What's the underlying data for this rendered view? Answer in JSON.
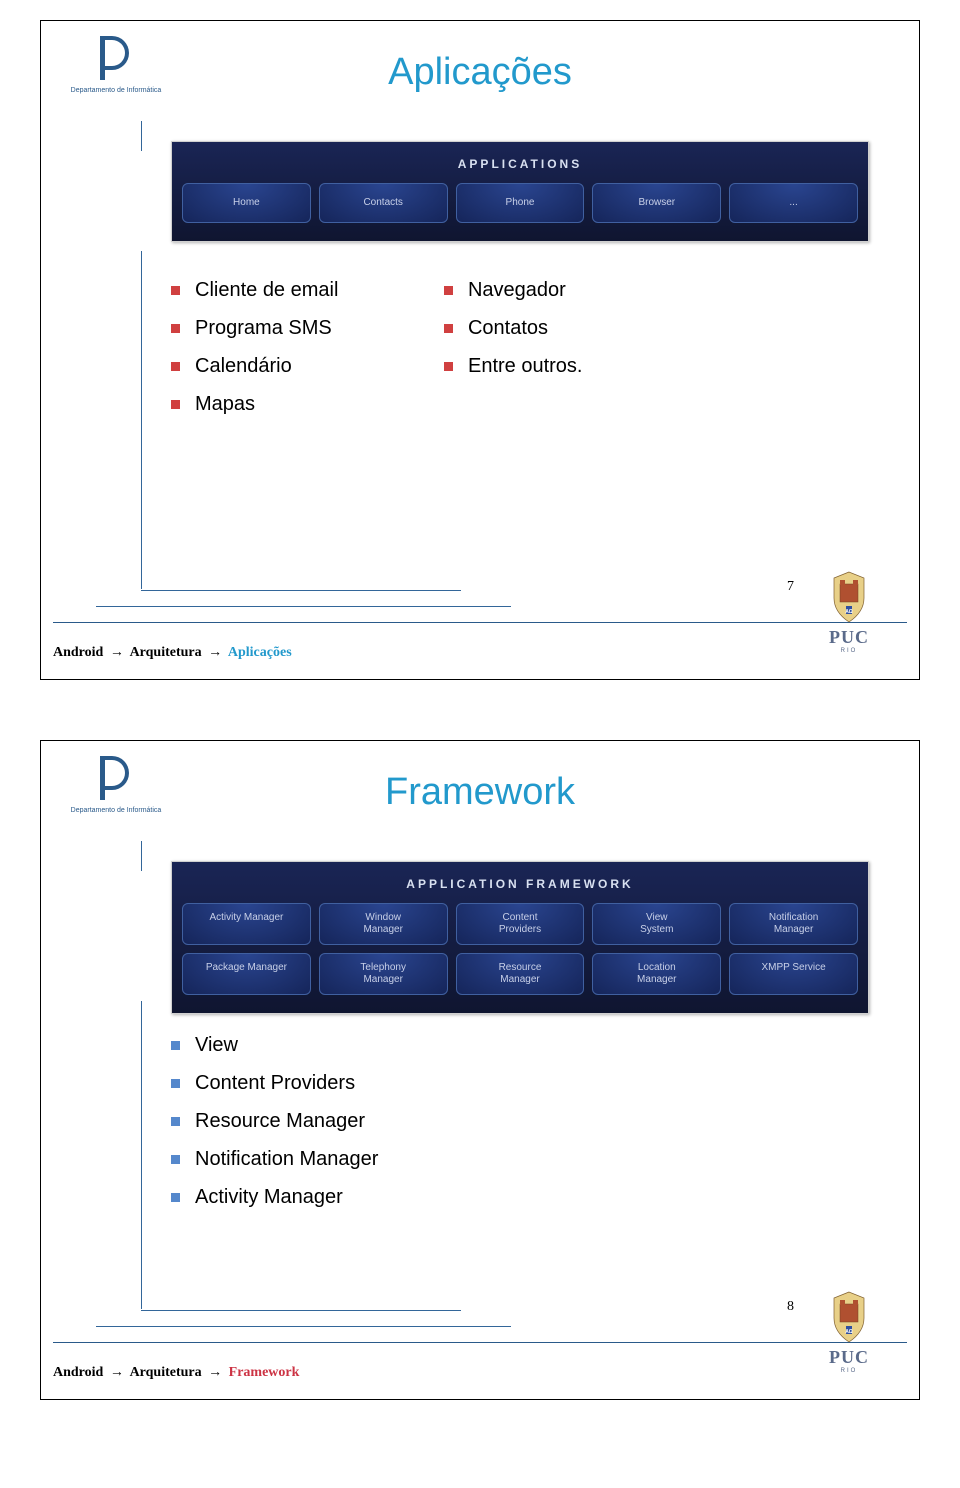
{
  "logo": {
    "dept_text": "Departamento de Informática"
  },
  "slide1": {
    "title": "Aplicações",
    "panel": {
      "title": "APPLICATIONS",
      "buttons": [
        "Home",
        "Contacts",
        "Phone",
        "Browser",
        "..."
      ]
    },
    "left_bullets": [
      "Cliente de email",
      "Programa SMS",
      "Calendário",
      "Mapas"
    ],
    "right_bullets": [
      "Navegador",
      "Contatos",
      "Entre outros."
    ],
    "breadcrumb": {
      "a": "Android",
      "b": "Arquitetura",
      "c": "Aplicações",
      "color_a": "#000000",
      "color_b": "#000000",
      "color_c": "#2299cc"
    },
    "page": "7"
  },
  "slide2": {
    "title": "Framework",
    "panel": {
      "title": "APPLICATION FRAMEWORK",
      "row1": [
        "Activity Manager",
        "Window\nManager",
        "Content\nProviders",
        "View\nSystem",
        "Notification\nManager"
      ],
      "row2": [
        "Package Manager",
        "Telephony\nManager",
        "Resource\nManager",
        "Location\nManager",
        "XMPP Service"
      ]
    },
    "bullets": [
      "View",
      "Content Providers",
      "Resource Manager",
      "Notification Manager",
      "Activity Manager"
    ],
    "breadcrumb": {
      "a": "Android",
      "b": "Arquitetura",
      "c": "Framework",
      "color_a": "#000000",
      "color_b": "#000000",
      "color_c": "#cc3344"
    },
    "page": "8"
  },
  "puc": {
    "name": "PUC",
    "sub": "RIO"
  },
  "colors": {
    "title": "#2299cc",
    "bullet_red": "#d04040",
    "bullet_blue": "#5588cc",
    "line": "#336699"
  }
}
